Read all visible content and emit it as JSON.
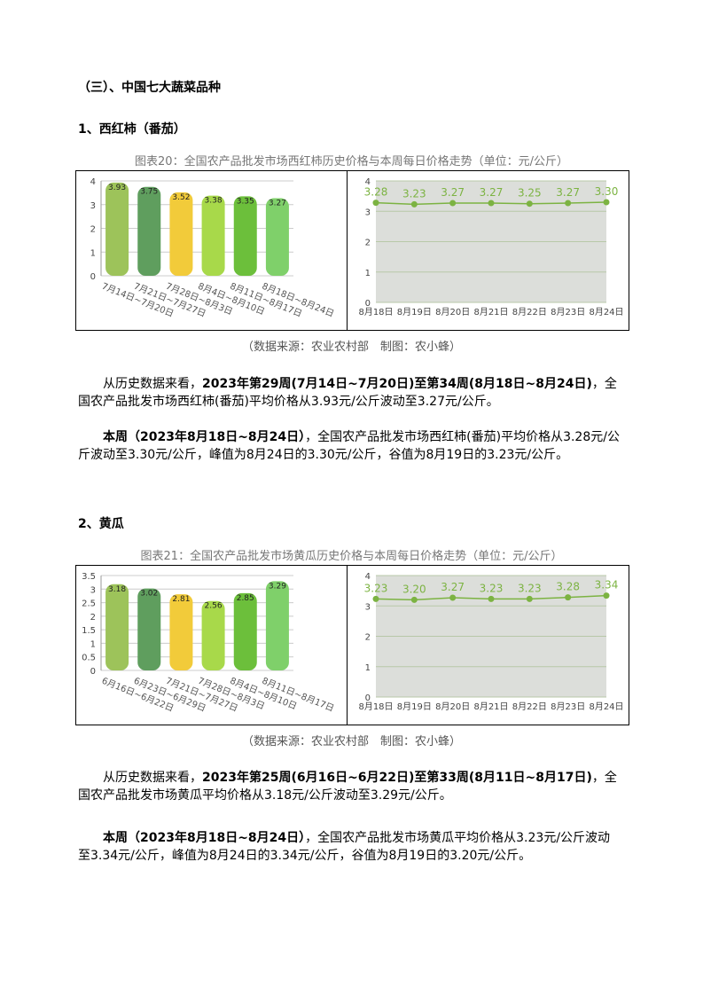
{
  "section_title": "（三）、中国七大蔬菜品种",
  "subsections": [
    {
      "heading": "1、西红柿（番茄）",
      "caption": "图表20：全国农产品批发市场西红柿历史价格与本周每日价格走势（单位：元/公斤）",
      "chart_data": [
        {
          "type": "bar",
          "categories": [
            "7月14日~7月20日",
            "7月21日~7月27日",
            "7月28日~8月3日",
            "8月4日~8月10日",
            "8月11日~8月17日",
            "8月18日~8月24日"
          ],
          "values": [
            3.93,
            3.75,
            3.52,
            3.38,
            3.35,
            3.27
          ],
          "colors": [
            "#9dc35a",
            "#5f9e5e",
            "#f2cb3a",
            "#a8d94a",
            "#6cbf3b",
            "#7fd06a"
          ],
          "ylim": [
            0,
            4
          ],
          "yticks": [
            0,
            1,
            2,
            3,
            4
          ],
          "grid": true
        },
        {
          "type": "line",
          "categories": [
            "8月18日",
            "8月19日",
            "8月20日",
            "8月21日",
            "8月22日",
            "8月23日",
            "8月24日"
          ],
          "values": [
            3.28,
            3.23,
            3.27,
            3.27,
            3.25,
            3.27,
            3.3
          ],
          "value_labels": [
            "3.28",
            "3.23",
            "3.27",
            "3.27",
            "3.25",
            "3.27",
            "3.30"
          ],
          "color": "#7cb342",
          "area_color": "#dcdeda",
          "ylim": [
            0,
            4
          ],
          "yticks": [
            0,
            1,
            2,
            3,
            4
          ],
          "grid": true
        }
      ],
      "source": "（数据来源：农业农村部　制图：农小蜂）",
      "paragraphs": [
        [
          {
            "text": "从历史数据来看，",
            "bold": false
          },
          {
            "text": "2023年第29周(7月14日~7月20日)至第34周(8月18日~8月24日)",
            "bold": true
          },
          {
            "text": "，全国农产品批发市场西红柿(番茄)平均价格从3.93元/公斤波动至3.27元/公斤。",
            "bold": false
          }
        ],
        [
          {
            "text": "本周（2023年8月18日~8月24日）",
            "bold": true
          },
          {
            "text": "，全国农产品批发市场西红柿(番茄)平均价格从3.28元/公斤波动至3.30元/公斤，峰值为8月24日的3.30元/公斤，谷值为8月19日的3.23元/公斤。",
            "bold": false
          }
        ]
      ]
    },
    {
      "heading": "2、黄瓜",
      "caption": "图表21：全国农产品批发市场黄瓜历史价格与本周每日价格走势（单位：元/公斤）",
      "chart_data": [
        {
          "type": "bar",
          "categories": [
            "6月16日~6月22日",
            "6月23日~6月29日",
            "7月21日~7月27日",
            "7月28日~8月3日",
            "8月4日~8月10日",
            "8月11日~8月17日"
          ],
          "values": [
            3.18,
            3.02,
            2.81,
            2.56,
            2.85,
            3.29
          ],
          "colors": [
            "#9dc35a",
            "#5f9e5e",
            "#f2cb3a",
            "#a8d94a",
            "#6cbf3b",
            "#7fd06a"
          ],
          "ylim": [
            0,
            3.5
          ],
          "yticks": [
            0,
            0.5,
            1,
            1.5,
            2,
            2.5,
            3,
            3.5
          ],
          "grid": true
        },
        {
          "type": "line",
          "categories": [
            "8月18日",
            "8月19日",
            "8月20日",
            "8月21日",
            "8月22日",
            "8月23日",
            "8月24日"
          ],
          "values": [
            3.23,
            3.2,
            3.27,
            3.23,
            3.23,
            3.28,
            3.34
          ],
          "value_labels": [
            "3.23",
            "3.20",
            "3.27",
            "3.23",
            "3.23",
            "3.28",
            "3.34"
          ],
          "color": "#7cb342",
          "area_color": "#dcdeda",
          "ylim": [
            0,
            4
          ],
          "yticks": [
            0,
            1,
            2,
            3,
            4
          ],
          "grid": true
        }
      ],
      "source": "（数据来源：农业农村部　制图：农小蜂）",
      "paragraphs": [
        [
          {
            "text": "从历史数据来看，",
            "bold": false
          },
          {
            "text": "2023年第25周(6月16日~6月22日)至第33周(8月11日~8月17日)",
            "bold": true
          },
          {
            "text": "，全国农产品批发市场黄瓜平均价格从3.18元/公斤波动至3.29元/公斤。",
            "bold": false
          }
        ],
        [
          {
            "text": "本周（2023年8月18日~8月24日）",
            "bold": true
          },
          {
            "text": "，全国农产品批发市场黄瓜平均价格从3.23元/公斤波动至3.34元/公斤，峰值为8月24日的3.34元/公斤，谷值为8月19日的3.20元/公斤。",
            "bold": false
          }
        ]
      ]
    }
  ]
}
